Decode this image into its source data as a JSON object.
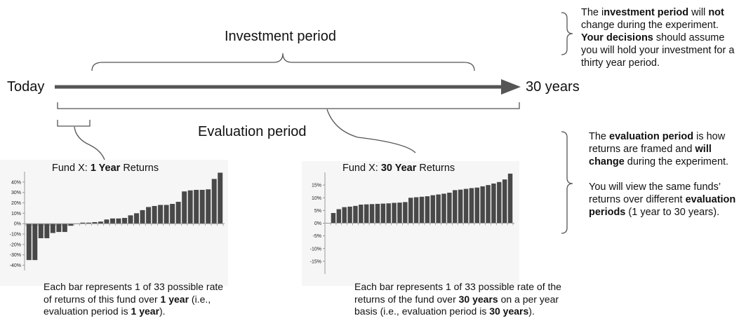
{
  "timeline": {
    "start_label": "Today",
    "end_label": "30 years",
    "investment_label": "Investment period",
    "evaluation_label": "Evaluation period"
  },
  "notes": {
    "investment": [
      {
        "t": "The i"
      },
      {
        "t": "nvestment period",
        "b": true
      },
      {
        "t": " will "
      },
      {
        "t": "not",
        "b": true
      },
      {
        "t": " change during the experiment. "
      },
      {
        "t": "Your decisions",
        "b": true
      },
      {
        "t": " should assume you will hold your investment for a thirty year period."
      }
    ],
    "evaluation_1": [
      {
        "t": "The "
      },
      {
        "t": "evaluation period",
        "b": true
      },
      {
        "t": " is how returns are framed and "
      },
      {
        "t": "will change",
        "b": true
      },
      {
        "t": " during the experiment."
      }
    ],
    "evaluation_2": [
      {
        "t": "You will view the same funds’ returns over different "
      },
      {
        "t": "evaluation periods",
        "b": true
      },
      {
        "t": " (1 year to 30 years)."
      }
    ]
  },
  "captions": {
    "left": [
      {
        "t": "Each bar represents 1 of 33 possible rate of returns of this fund over "
      },
      {
        "t": "1 year",
        "b": true
      },
      {
        "t": " (i.e., evaluation period is "
      },
      {
        "t": "1 year",
        "b": true
      },
      {
        "t": ")."
      }
    ],
    "right": [
      {
        "t": "Each bar represents 1 of 33 possible rate of the returns of the fund over "
      },
      {
        "t": "30 years",
        "b": true
      },
      {
        "t": " on a per year basis (i.e., evaluation period is "
      },
      {
        "t": "30 years",
        "b": true
      },
      {
        "t": ")."
      }
    ]
  },
  "chart_data": [
    {
      "type": "bar",
      "title_parts": [
        {
          "t": "Fund X: "
        },
        {
          "t": "1 Year",
          "b": true
        },
        {
          "t": " Returns"
        }
      ],
      "ylim": [
        -45,
        50
      ],
      "yticks": [
        40,
        30,
        20,
        10,
        0,
        -10,
        -20,
        -30,
        -40
      ],
      "tick_labels": [
        "40%",
        "30%",
        "20%",
        "10%",
        "0%",
        "-10%",
        "-20%",
        "-30%",
        "-40%"
      ],
      "bar_color": "#484848",
      "values": [
        -35,
        -35,
        -14,
        -14,
        -9,
        -8,
        -8,
        -2,
        0,
        1,
        1,
        1.5,
        2,
        4,
        5,
        5,
        5.5,
        8,
        10,
        13,
        16,
        17,
        18,
        18,
        19,
        21,
        31,
        32,
        32.5,
        32.5,
        33,
        43,
        49
      ]
    },
    {
      "type": "bar",
      "title_parts": [
        {
          "t": "Fund X: "
        },
        {
          "t": "30 Year",
          "b": true
        },
        {
          "t": " Returns"
        }
      ],
      "ylim": [
        -20,
        20
      ],
      "yticks": [
        15,
        10,
        5,
        0,
        -5,
        -10,
        -15
      ],
      "tick_labels": [
        "15%",
        "10%",
        "5%",
        "0%",
        "-5%",
        "-10%",
        "-15%"
      ],
      "bar_color": "#484848",
      "values": [
        4,
        5.5,
        6.3,
        6.5,
        6.8,
        7.3,
        7.4,
        7.5,
        7.6,
        7.7,
        7.8,
        8,
        8.1,
        8.3,
        10,
        10.2,
        10.4,
        10.6,
        11,
        11.3,
        11.6,
        12,
        13,
        13.2,
        13.5,
        13.8,
        14,
        14.5,
        15,
        15.6,
        16.2,
        17.2,
        19.5
      ]
    }
  ]
}
